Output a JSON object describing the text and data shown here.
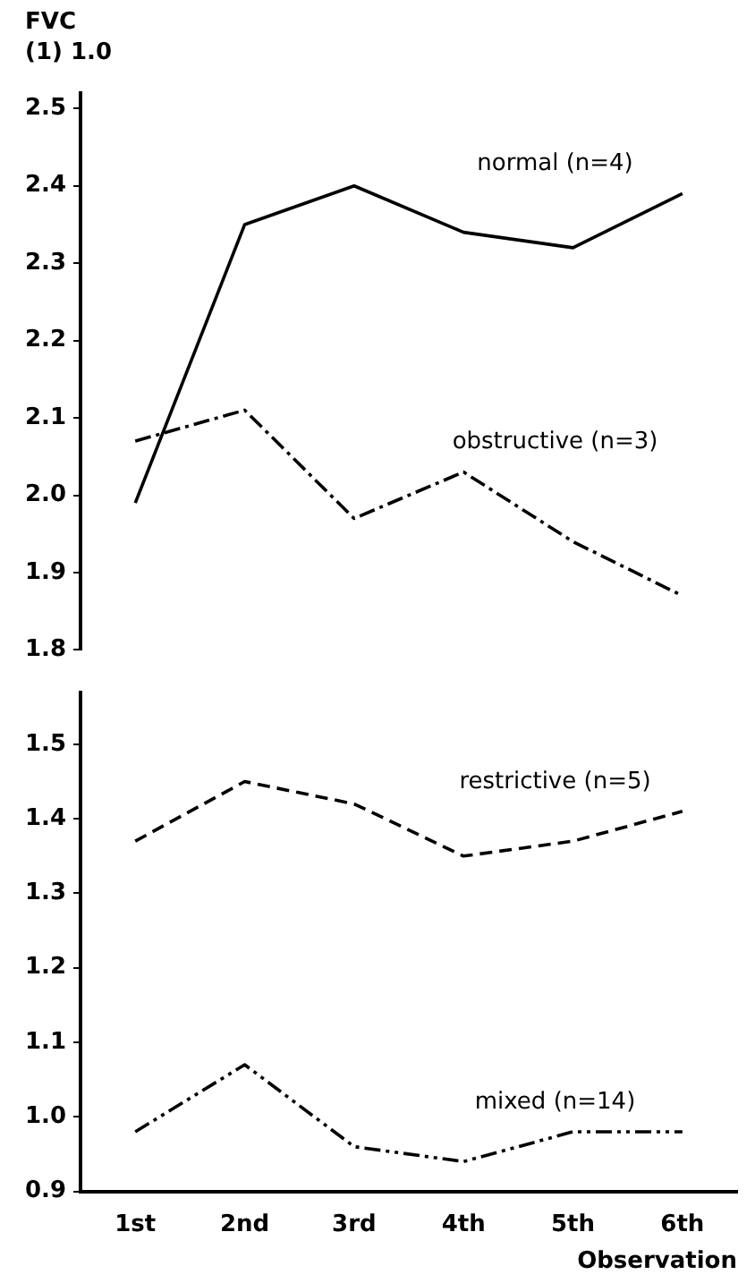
{
  "chart_data": [
    {
      "type": "line",
      "ylabel": "FVC (1) 1.0",
      "categories": [
        null,
        null,
        null,
        null,
        null,
        null
      ],
      "tick_labels": "y",
      "ylim": [
        1.8,
        2.52
      ],
      "yticks": [
        1.8,
        1.9,
        {
          "value": 2,
          "label": "2.0"
        },
        2.1,
        2.2,
        2.3,
        2.4,
        2.5
      ],
      "grid": false,
      "marker": "none",
      "series": [
        {
          "name": "normal (n=4)",
          "color": "#000000",
          "line_style": "solid",
          "values": [
            1.99,
            2.35,
            2.4,
            2.34,
            2.32,
            2.39
          ]
        },
        {
          "name": "obstructive (n=3)",
          "color": "#000000",
          "line_style": "dashdot",
          "values": [
            2.07,
            2.11,
            1.97,
            2.03,
            1.94,
            1.87
          ]
        }
      ]
    },
    {
      "type": "line",
      "xlabel": "Observation",
      "categories": [
        "1st",
        "2nd",
        "3rd",
        "4th",
        "5th",
        "6th"
      ],
      "ylim": [
        0.9,
        1.57
      ],
      "yticks": [
        0.9,
        {
          "value": 1,
          "label": "1.0"
        },
        1.1,
        1.2,
        1.3,
        1.4,
        1.5
      ],
      "grid": false,
      "marker": "none",
      "series": [
        {
          "name": "restrictive (n=5)",
          "color": "#000000",
          "line_style": "dashed",
          "values": [
            1.37,
            1.45,
            1.42,
            1.35,
            1.37,
            1.41
          ]
        },
        {
          "name": "mixed (n=14)",
          "color": "#000000",
          "line_style": "dashdotdot",
          "values": [
            0.98,
            1.07,
            0.96,
            0.94,
            0.98,
            0.98
          ]
        }
      ]
    }
  ]
}
